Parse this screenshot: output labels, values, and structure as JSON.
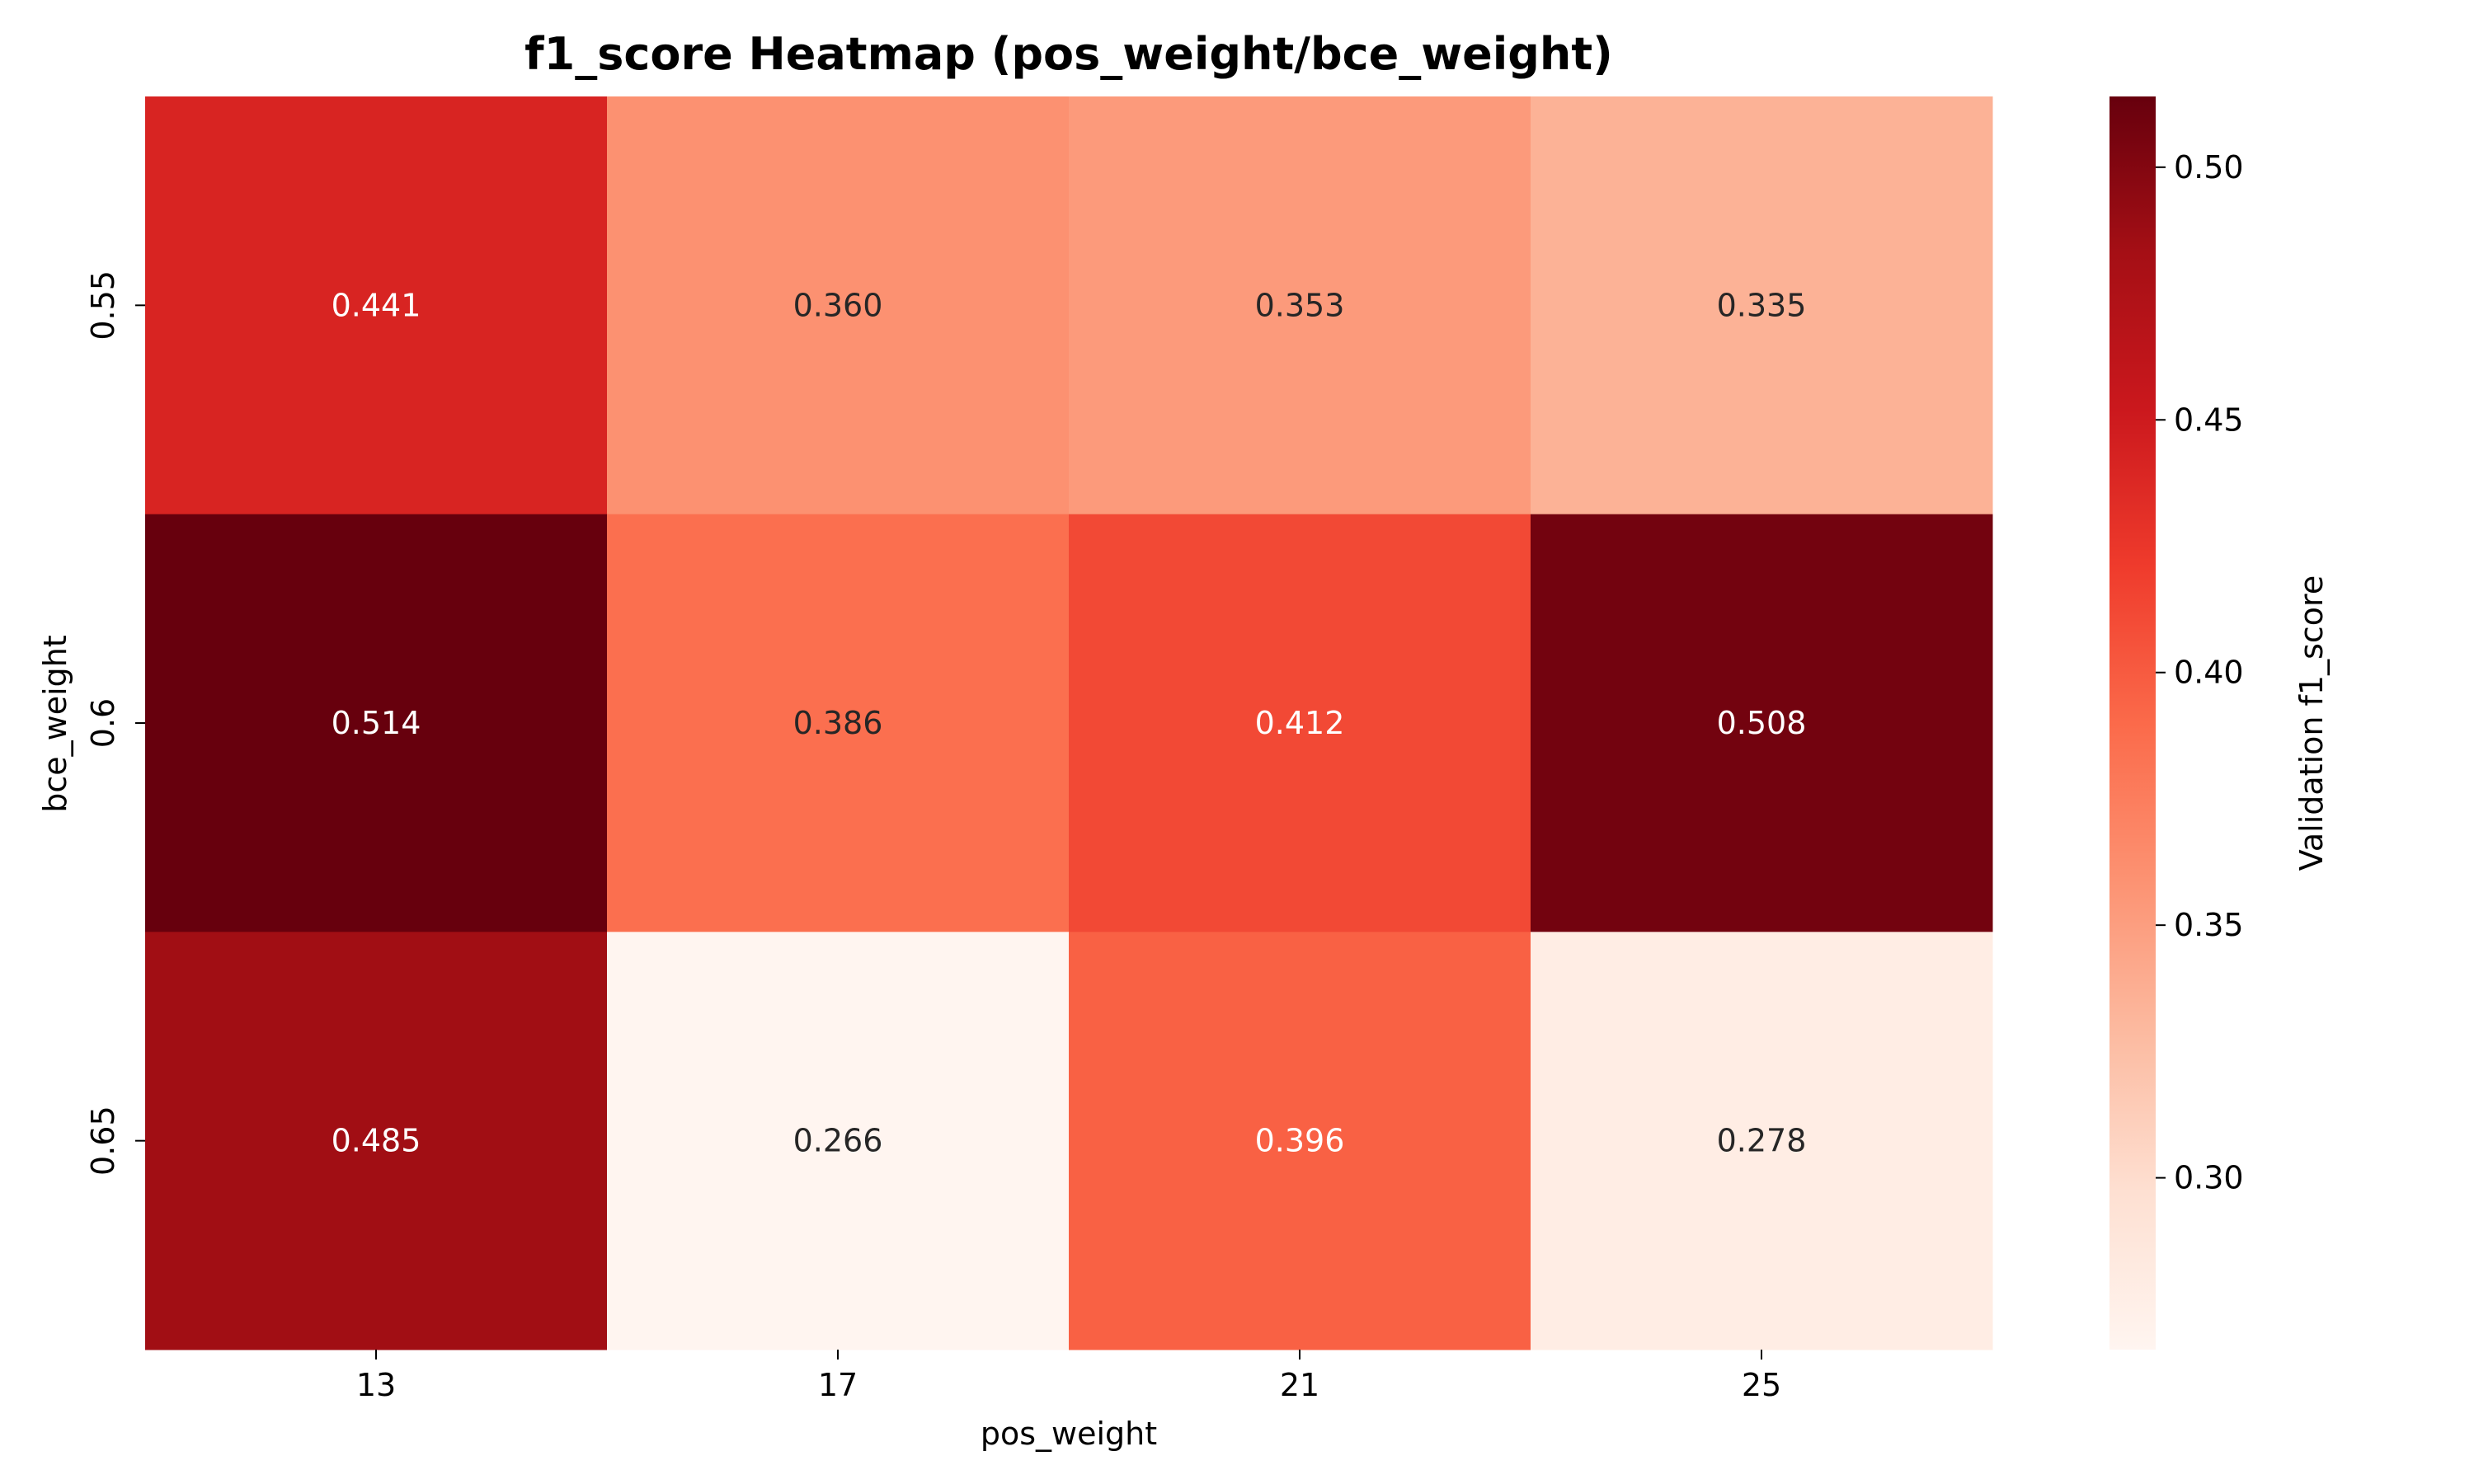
{
  "chart_data": {
    "type": "heatmap",
    "title": "f1_score Heatmap (pos_weight/bce_weight)",
    "xlabel": "pos_weight",
    "ylabel": "bce_weight",
    "x_categories": [
      "13",
      "17",
      "21",
      "25"
    ],
    "y_categories": [
      "0.55",
      "0.6",
      "0.65"
    ],
    "values": [
      [
        0.441,
        0.36,
        0.353,
        0.335
      ],
      [
        0.514,
        0.386,
        0.412,
        0.508
      ],
      [
        0.485,
        0.266,
        0.396,
        0.278
      ]
    ],
    "colorbar": {
      "label": "Validation f1_score",
      "ticks": [
        "0.30",
        "0.35",
        "0.40",
        "0.45",
        "0.50"
      ],
      "range": [
        0.266,
        0.514
      ],
      "colormap": "Reds"
    },
    "grid": false,
    "legend": "colorbar-right"
  }
}
